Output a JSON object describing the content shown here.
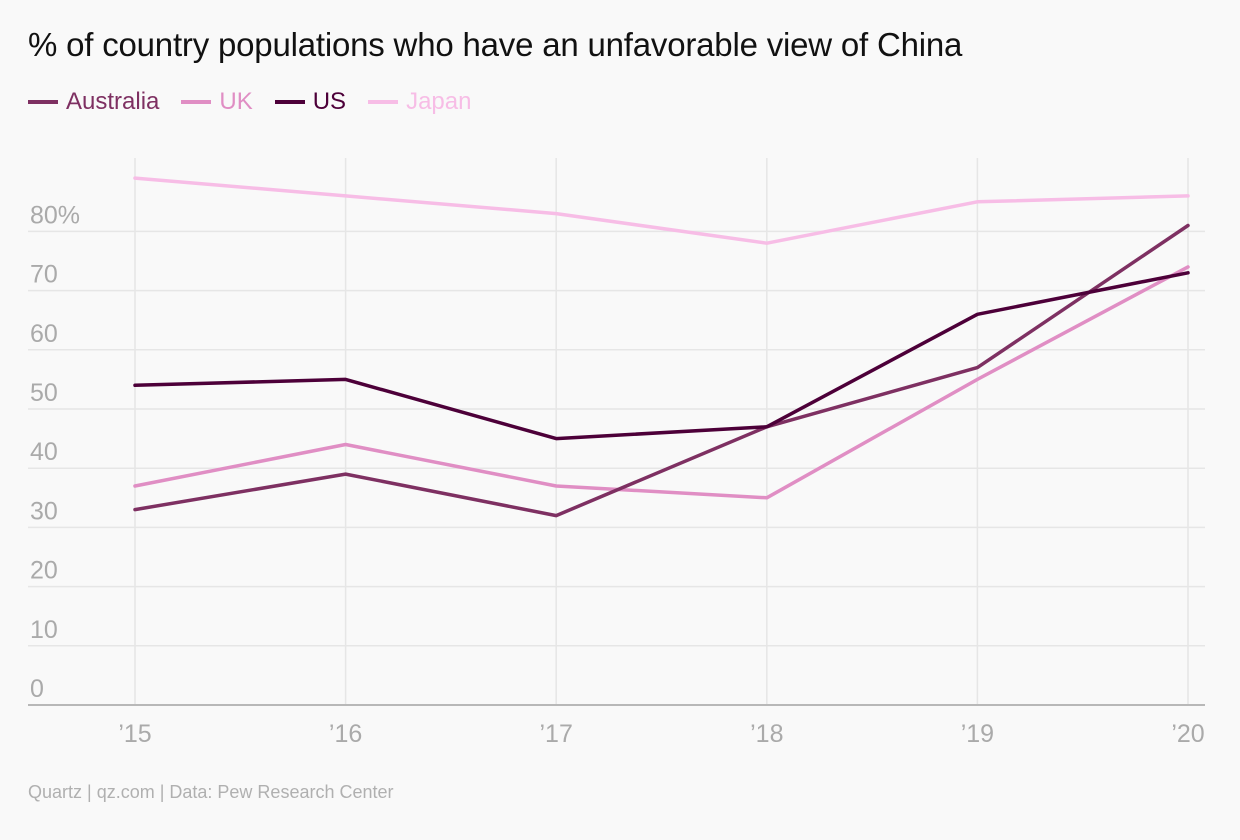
{
  "chart_data": {
    "type": "line",
    "title": "% of country populations who have an unfavorable view of China",
    "x": [
      "’15",
      "’16",
      "’17",
      "’18",
      "’19",
      "’20"
    ],
    "series": [
      {
        "name": "Australia",
        "color": "#7e3062",
        "values": [
          33,
          39,
          32,
          47,
          57,
          81
        ]
      },
      {
        "name": "UK",
        "color": "#e08ec4",
        "values": [
          37,
          44,
          37,
          35,
          55,
          74
        ]
      },
      {
        "name": "US",
        "color": "#4d0039",
        "values": [
          54,
          55,
          45,
          47,
          66,
          73
        ]
      },
      {
        "name": "Japan",
        "color": "#f7bde6",
        "values": [
          89,
          86,
          83,
          78,
          85,
          86
        ]
      }
    ],
    "y_ticks": [
      "0",
      "10",
      "20",
      "30",
      "40",
      "50",
      "60",
      "70",
      "80%"
    ],
    "ylim": [
      0,
      90
    ],
    "grid": true,
    "legend": "top-left"
  },
  "source": "Quartz | qz.com | Data: Pew Research Center"
}
